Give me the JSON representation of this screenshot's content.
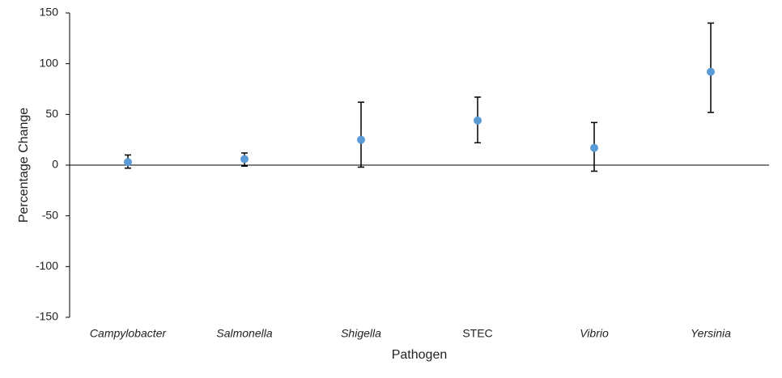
{
  "chart_data": {
    "type": "point",
    "x_label": "Pathogen",
    "y_label": "Percentage Change",
    "categories": [
      "Campylobacter",
      "Salmonella",
      "Shigella",
      "STEC",
      "Vibrio",
      "Yersinia"
    ],
    "category_font_style": [
      "italic",
      "italic",
      "italic",
      "normal",
      "italic",
      "italic"
    ],
    "values": [
      3,
      6,
      25,
      44,
      17,
      92
    ],
    "lower": [
      -3,
      -1,
      -2,
      22,
      -6,
      52
    ],
    "upper": [
      10,
      12,
      62,
      67,
      42,
      140
    ],
    "color": "#5b9bd5",
    "error_color": "#000000",
    "ylim": [
      -150,
      150
    ],
    "yticks": [
      150,
      100,
      50,
      0,
      -50,
      -100,
      -150
    ],
    "grid": false
  }
}
